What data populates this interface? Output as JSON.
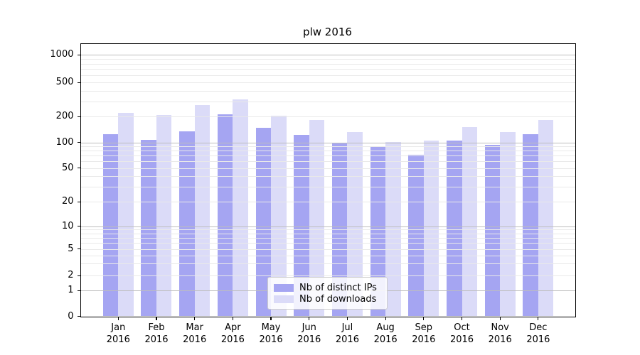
{
  "title": "plw 2016",
  "chart_data": {
    "type": "bar",
    "title": "plw 2016",
    "yscale": "symlog",
    "grid": true,
    "ylim": [
      0,
      1450
    ],
    "yticks": [
      0,
      1,
      2,
      5,
      10,
      20,
      50,
      100,
      200,
      500,
      1000
    ],
    "categories": [
      "Jan 2016",
      "Feb 2016",
      "Mar 2016",
      "Apr 2016",
      "May 2016",
      "Jun 2016",
      "Jul 2016",
      "Aug 2016",
      "Sep 2016",
      "Oct 2016",
      "Nov 2016",
      "Dec 2016"
    ],
    "series": [
      {
        "name": "Nb of distinct IPs",
        "color": "#a5a5f2",
        "values": [
          125,
          107,
          135,
          210,
          148,
          123,
          99,
          89,
          71,
          106,
          94,
          125
        ]
      },
      {
        "name": "Nb of downloads",
        "color": "#dbdbf8",
        "values": [
          220,
          208,
          270,
          316,
          205,
          183,
          132,
          101,
          106,
          151,
          132,
          182
        ]
      }
    ],
    "legend_position": "lower center"
  },
  "legend": {
    "items": [
      {
        "label": "Nb of distinct IPs",
        "color": "#a5a5f2"
      },
      {
        "label": "Nb of downloads",
        "color": "#dbdbf8"
      }
    ]
  },
  "colors": {
    "background": "#ffffff",
    "axis": "#000000",
    "grid_major": "#bdbdbd",
    "grid_minor": "#e9e9e9",
    "legend_border": "#cccccc"
  }
}
